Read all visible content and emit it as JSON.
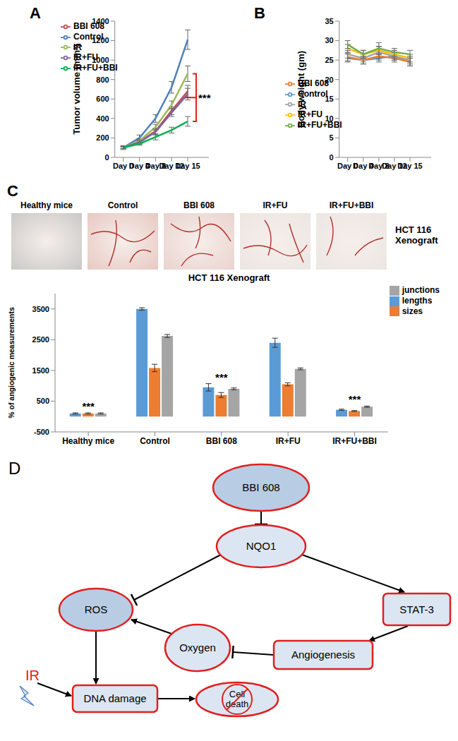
{
  "chart_data": [
    {
      "type": "line",
      "panel_label": "A",
      "y_label": "Tumor volume (mm³)",
      "categories": [
        "Day 0",
        "Day 4",
        "Day 8",
        "Day 12",
        "Day 15"
      ],
      "ylim": [
        0,
        1400
      ],
      "yticks": [
        0,
        200,
        400,
        600,
        800,
        1000,
        1200,
        1400
      ],
      "legend": "top-left",
      "series": [
        {
          "name": "Control",
          "color": "#4f81bd",
          "values": [
            100,
            200,
            400,
            720,
            1210
          ],
          "errors": [
            20,
            30,
            40,
            60,
            100
          ]
        },
        {
          "name": "BBI 608",
          "color": "#c0504d",
          "values": [
            100,
            160,
            270,
            480,
            680
          ],
          "errors": [
            10,
            20,
            30,
            40,
            60
          ]
        },
        {
          "name": "IR",
          "color": "#9bbb59",
          "values": [
            100,
            170,
            310,
            540,
            860
          ],
          "errors": [
            10,
            20,
            30,
            40,
            80
          ]
        },
        {
          "name": "IR+FU",
          "color": "#8064a2",
          "values": [
            100,
            155,
            260,
            460,
            650
          ],
          "errors": [
            10,
            20,
            30,
            40,
            60
          ]
        },
        {
          "name": "IR+FU+BBI",
          "color": "#00b050",
          "values": [
            100,
            140,
            210,
            280,
            370
          ],
          "errors": [
            10,
            15,
            30,
            30,
            50
          ]
        }
      ],
      "annotations": [
        {
          "text": "***",
          "between": [
            "IR",
            "IR+FU+BBI"
          ]
        }
      ]
    },
    {
      "type": "line",
      "panel_label": "B",
      "y_label": "Body weight (gm)",
      "categories": [
        "Day 0",
        "Day 4",
        "Day 8",
        "Day 12",
        "Day 15"
      ],
      "ylim": [
        0,
        35
      ],
      "yticks": [
        0,
        5,
        10,
        15,
        20,
        25,
        30,
        35
      ],
      "legend": "left",
      "series": [
        {
          "name": "Control",
          "color": "#5b9bd5",
          "values": [
            25.5,
            25,
            25.5,
            26,
            24.5
          ],
          "errors": [
            1,
            1,
            1,
            1,
            1
          ]
        },
        {
          "name": "BBI 608",
          "color": "#ed7d31",
          "values": [
            25.8,
            25,
            26,
            25.5,
            24.5
          ],
          "errors": [
            1,
            1,
            1,
            1,
            1
          ]
        },
        {
          "name": "IR",
          "color": "#a5a5a5",
          "values": [
            26.5,
            25.5,
            27,
            26,
            25
          ],
          "errors": [
            1,
            1,
            1.5,
            1,
            1
          ]
        },
        {
          "name": "IR+FU",
          "color": "#ffc000",
          "values": [
            28,
            26.5,
            27.5,
            26.5,
            25.5
          ],
          "errors": [
            1,
            1,
            1,
            1,
            1
          ]
        },
        {
          "name": "IR+FU+BBI",
          "color": "#70ad47",
          "values": [
            29,
            26.5,
            28,
            27,
            26.5
          ],
          "errors": [
            1,
            1,
            1.5,
            1,
            1
          ]
        }
      ]
    },
    {
      "type": "bar",
      "title": "HCT 116 Xenograft",
      "y_label": "% of angiogenic measurements",
      "categories": [
        "Healthy mice",
        "Control",
        "BBI 608",
        "IR+FU",
        "IR+FU+BBI"
      ],
      "ylim": [
        -500,
        4000
      ],
      "yticks": [
        -500,
        500,
        1500,
        2500,
        3500
      ],
      "legend": "top-right",
      "series": [
        {
          "name": "lengths",
          "color": "#5b9bd5",
          "values": [
            100,
            3500,
            950,
            2400,
            220
          ],
          "errors": [
            20,
            40,
            120,
            150,
            20
          ]
        },
        {
          "name": "sizes",
          "color": "#ed7d31",
          "values": [
            100,
            1580,
            700,
            1050,
            180
          ],
          "errors": [
            20,
            120,
            80,
            50,
            15
          ]
        },
        {
          "name": "junctions",
          "color": "#a5a5a5",
          "values": [
            100,
            2620,
            900,
            1550,
            320
          ],
          "errors": [
            20,
            50,
            30,
            30,
            20
          ]
        }
      ],
      "annotations": [
        "***",
        null,
        "***",
        null,
        "***"
      ]
    }
  ],
  "images": {
    "panel_label": "C",
    "labels": [
      "Healthy mice",
      "Control",
      "BBI 608",
      "IR+FU",
      "IR+FU+BBI"
    ],
    "side_label": "HCT 116 Xenograft"
  },
  "diagram": {
    "panel_label": "D",
    "nodes": [
      {
        "label": "BBI 608"
      },
      {
        "label": "NQO1"
      },
      {
        "label": "ROS"
      },
      {
        "label": "STAT-3"
      },
      {
        "label": "Oxygen"
      },
      {
        "label": "Angiogenesis"
      },
      {
        "label": "IR"
      },
      {
        "label": "DNA damage"
      },
      {
        "label": "Cell death"
      }
    ],
    "edges": [
      {
        "from": "BBI 608",
        "to": "NQO1",
        "type": "inhibits"
      },
      {
        "from": "NQO1",
        "to": "ROS",
        "type": "inhibits"
      },
      {
        "from": "NQO1",
        "to": "STAT-3",
        "type": "activates"
      },
      {
        "from": "STAT-3",
        "to": "Angiogenesis",
        "type": "activates"
      },
      {
        "from": "Angiogenesis",
        "to": "Oxygen",
        "type": "inhibits"
      },
      {
        "from": "Oxygen",
        "to": "ROS",
        "type": "activates"
      },
      {
        "from": "ROS",
        "to": "DNA damage",
        "type": "activates"
      },
      {
        "from": "IR",
        "to": "DNA damage",
        "type": "activates"
      },
      {
        "from": "DNA damage",
        "to": "Cell death",
        "type": "activates"
      }
    ]
  }
}
